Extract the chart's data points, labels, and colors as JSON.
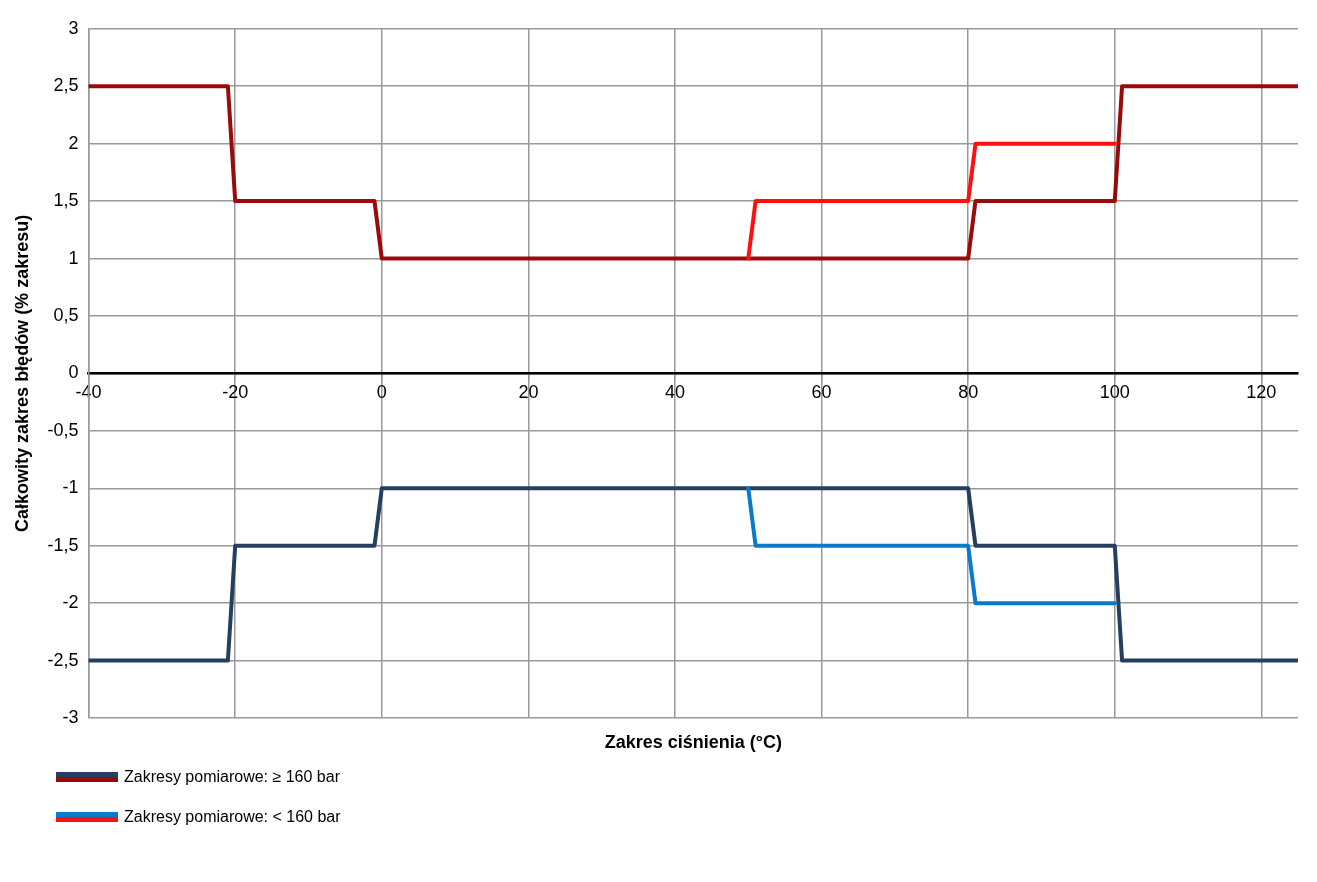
{
  "chart_data": {
    "type": "line",
    "xlabel": "Zakres ciśnienia (°C)",
    "ylabel": "Całkowity zakres błędów (% zakresu)",
    "xlim": [
      -40,
      125
    ],
    "xticks": [
      -40,
      -20,
      0,
      20,
      40,
      60,
      80,
      100,
      120
    ],
    "ylim": [
      -3,
      3
    ],
    "yticks": [
      {
        "value": -3,
        "label": "-3"
      },
      {
        "value": -2.5,
        "label": "-2,5"
      },
      {
        "value": -2,
        "label": "-2"
      },
      {
        "value": -1.5,
        "label": "-1,5"
      },
      {
        "value": -1,
        "label": "-1"
      },
      {
        "value": -0.5,
        "label": "-0,5"
      },
      {
        "value": 0,
        "label": "0"
      },
      {
        "value": 0.5,
        "label": "0,5"
      },
      {
        "value": 1,
        "label": "1"
      },
      {
        "value": 1.5,
        "label": "1,5"
      },
      {
        "value": 2,
        "label": "2"
      },
      {
        "value": 2.5,
        "label": "2,5"
      },
      {
        "value": 3,
        "label": "3"
      }
    ],
    "grid": true,
    "legend": "bottom left",
    "marker": "none",
    "line_style": "solid",
    "series": [
      {
        "name": "Zakresy pomiarowe: ≥ 160 bar",
        "color": "#243f60",
        "x": [
          -40,
          -21,
          -20,
          -1,
          0,
          80,
          81,
          100,
          101,
          125
        ],
        "values": [
          -2.5,
          -2.5,
          -1.5,
          -1.5,
          -1,
          -1,
          -1.5,
          -1.5,
          -2.5,
          -2.5
        ]
      },
      {
        "color": "#9b0a0a",
        "x": [
          -40,
          -21,
          -20,
          -1,
          0,
          80,
          81,
          100,
          101,
          125
        ],
        "values": [
          2.5,
          2.5,
          1.5,
          1.5,
          1,
          1,
          1.5,
          1.5,
          2.5,
          2.5
        ]
      },
      {
        "name": "Zakresy pomiarowe: < 160 bar",
        "color": "#0a7acc",
        "x": [
          50,
          51,
          80,
          81,
          100
        ],
        "values": [
          -1,
          -1.5,
          -1.5,
          -2,
          -2
        ]
      },
      {
        "color": "#ff1010",
        "x": [
          50,
          51,
          80,
          81,
          100
        ],
        "values": [
          1,
          1.5,
          1.5,
          2,
          2
        ]
      }
    ]
  }
}
